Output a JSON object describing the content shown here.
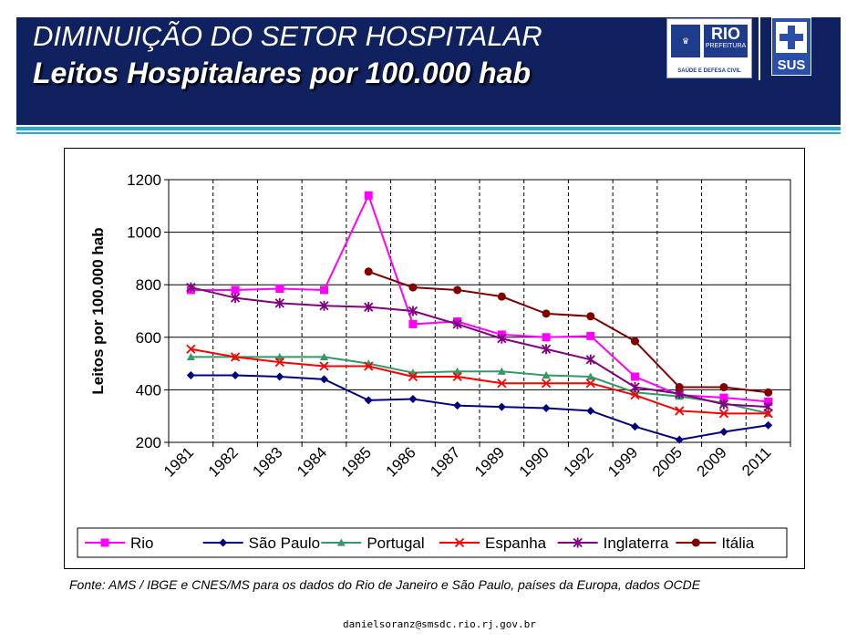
{
  "header": {
    "title": "DIMINUIÇÃO DO SETOR HOSPITALAR",
    "subtitle": "Leitos Hospitalares por 100.000 hab"
  },
  "logos": {
    "rio_label": "RIO",
    "rio_prefeitura": "PREFEITURA",
    "rio_sub": "SAÚDE E DEFESA CIVIL",
    "sus_label": "SUS"
  },
  "colors": {
    "banner": "#10215f",
    "accent_rule": "#2aa9d6"
  },
  "chart_data": {
    "type": "line",
    "title": "",
    "xlabel": "",
    "ylabel": "Leitos por 100.000 hab",
    "ylim": [
      200,
      1200
    ],
    "yticks": [
      200,
      400,
      600,
      800,
      1000,
      1200
    ],
    "categories": [
      "1981",
      "1982",
      "1983",
      "1984",
      "1985",
      "1986",
      "1987",
      "1989",
      "1990",
      "1992",
      "1999",
      "2005",
      "2009",
      "2011"
    ],
    "legend_position": "bottom",
    "series": [
      {
        "name": "Rio",
        "color": "#ff00ff",
        "marker": "square",
        "values": [
          780,
          780,
          785,
          780,
          1140,
          650,
          660,
          610,
          600,
          605,
          450,
          380,
          370,
          355
        ]
      },
      {
        "name": "São Paulo",
        "color": "#000080",
        "marker": "diamond",
        "values": [
          455,
          455,
          450,
          440,
          360,
          365,
          340,
          335,
          330,
          320,
          260,
          210,
          240,
          265
        ]
      },
      {
        "name": "Portugal",
        "color": "#339966",
        "marker": "triangle",
        "values": [
          525,
          525,
          525,
          525,
          500,
          465,
          470,
          470,
          455,
          450,
          390,
          375,
          350,
          310
        ]
      },
      {
        "name": "Espanha",
        "color": "#ff0000",
        "marker": "x",
        "values": [
          555,
          525,
          505,
          490,
          490,
          450,
          450,
          425,
          425,
          425,
          380,
          320,
          310,
          310
        ]
      },
      {
        "name": "Inglaterra",
        "color": "#800080",
        "marker": "star",
        "values": [
          790,
          750,
          730,
          720,
          715,
          700,
          650,
          595,
          555,
          515,
          410,
          385,
          345,
          335
        ]
      },
      {
        "name": "Itália",
        "color": "#800000",
        "marker": "circle",
        "values": [
          null,
          null,
          null,
          null,
          850,
          790,
          780,
          755,
          690,
          680,
          585,
          410,
          410,
          390
        ]
      }
    ]
  },
  "footer": {
    "source": "Fonte: AMS / IBGE e CNES/MS para os dados do Rio de Janeiro e São Paulo, países da Europa, dados OCDE",
    "email": "danielsoranz@smsdc.rio.rj.gov.br"
  }
}
